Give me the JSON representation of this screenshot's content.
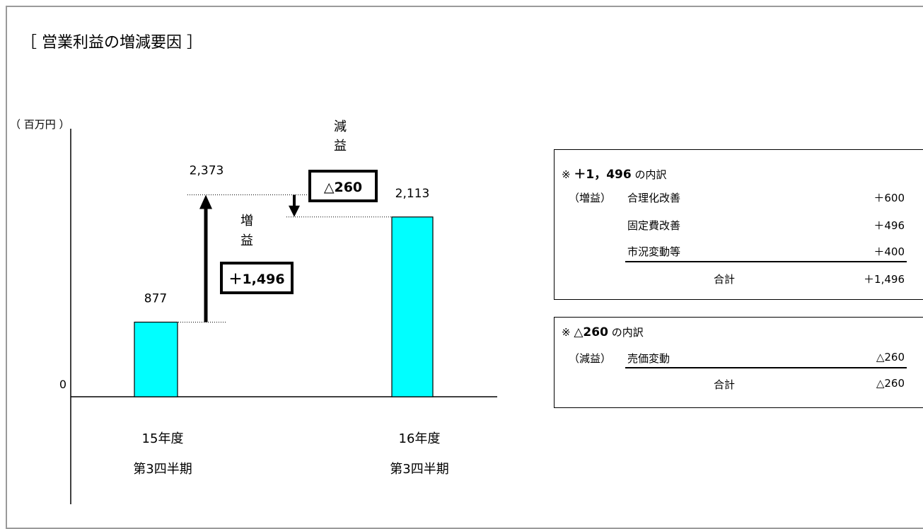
{
  "title": "［ 営業利益の増減要因 ］",
  "unit": "（ 百万円 ）",
  "chart_data": {
    "type": "bar",
    "categories": [
      "15年度\n第3四半期",
      "16年度\n第3四半期"
    ],
    "category_lines": [
      [
        "15年度",
        "第3四半期"
      ],
      [
        "16年度",
        "第3四半期"
      ]
    ],
    "values": [
      877,
      2113
    ],
    "value_labels": [
      "877",
      "2,113"
    ],
    "zero_label": "0",
    "peak_value": 2373,
    "peak_label": "2,373",
    "increase": {
      "value": 1496,
      "label": "＋1,496",
      "side_label": [
        "増",
        "益"
      ]
    },
    "decrease": {
      "value": -260,
      "label": "△260",
      "side_label": [
        "減",
        "益"
      ]
    },
    "bar_color": "#00ffff",
    "ylim": [
      0,
      2500
    ]
  },
  "breakdown_increase": {
    "header_prefix": "※",
    "header_value": "＋1，496",
    "header_suffix": "の内訳",
    "tag": "（増益）",
    "items": [
      {
        "label": "合理化改善",
        "value": "＋600"
      },
      {
        "label": "固定費改善",
        "value": "＋496"
      },
      {
        "label": "市況変動等",
        "value": "＋400"
      }
    ],
    "total_label": "合計",
    "total_value": "＋1,496"
  },
  "breakdown_decrease": {
    "header_prefix": "※",
    "header_value": "△260",
    "header_suffix": "の内訳",
    "tag": "（減益）",
    "items": [
      {
        "label": "売価変動",
        "value": "△260"
      }
    ],
    "total_label": "合計",
    "total_value": "△260"
  }
}
